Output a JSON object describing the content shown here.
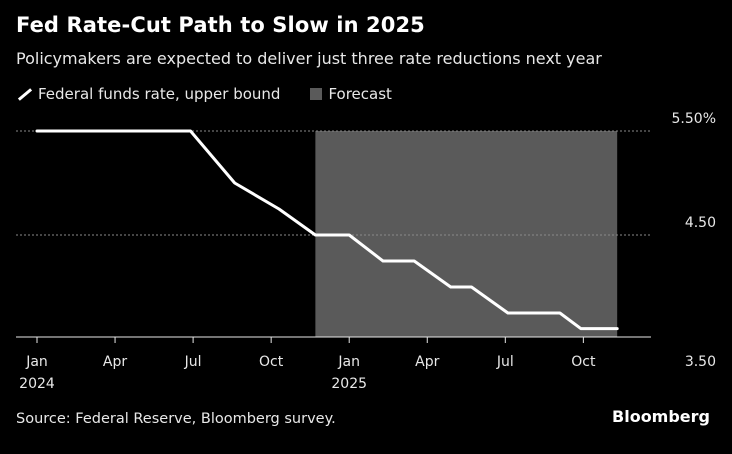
{
  "title": "Fed Rate-Cut Path to Slow in 2025",
  "subtitle": "Policymakers are expected to deliver just three rate reductions next year",
  "legend": {
    "series_label": "Federal funds rate, upper bound",
    "forecast_label": "Forecast"
  },
  "source": "Source: Federal Reserve, Bloomberg survey.",
  "brand": "Bloomberg",
  "colors": {
    "background": "#000000",
    "line": "#ffffff",
    "forecast_shade": "#5a5a5a",
    "grid": "#8a8a8a"
  },
  "chart_data": {
    "type": "line",
    "title": "Fed Rate-Cut Path to Slow in 2025",
    "subtitle": "Policymakers are expected to deliver just three rate reductions next year",
    "y_ticks": [
      {
        "value": 5.5,
        "label": "5.50%"
      },
      {
        "value": 4.5,
        "label": "4.50"
      },
      {
        "value": 3.5,
        "label": "3.50"
      }
    ],
    "ylim": [
      3.3,
      5.5
    ],
    "x_ticks": [
      {
        "month": 0,
        "label": "Jan",
        "year": "2024"
      },
      {
        "month": 3,
        "label": "Apr"
      },
      {
        "month": 6,
        "label": "Jul"
      },
      {
        "month": 9,
        "label": "Oct"
      },
      {
        "month": 12,
        "label": "Jan",
        "year": "2025"
      },
      {
        "month": 15,
        "label": "Apr"
      },
      {
        "month": 18,
        "label": "Jul"
      },
      {
        "month": 21,
        "label": "Oct"
      }
    ],
    "xlim": [
      0,
      23.6
    ],
    "forecast_range": [
      10.7,
      22.3
    ],
    "series": [
      {
        "name": "Federal funds rate, upper bound",
        "x": [
          0,
          5.9,
          7.6,
          9.3,
          10.7,
          12.0,
          13.3,
          14.5,
          15.9,
          16.7,
          18.1,
          19.0,
          20.1,
          20.9,
          22.3
        ],
        "y": [
          5.5,
          5.5,
          5.0,
          4.75,
          4.5,
          4.5,
          4.25,
          4.25,
          4.0,
          4.0,
          3.75,
          3.75,
          3.75,
          3.6,
          3.6
        ]
      }
    ],
    "grid": true,
    "legend_position": "top-left"
  }
}
